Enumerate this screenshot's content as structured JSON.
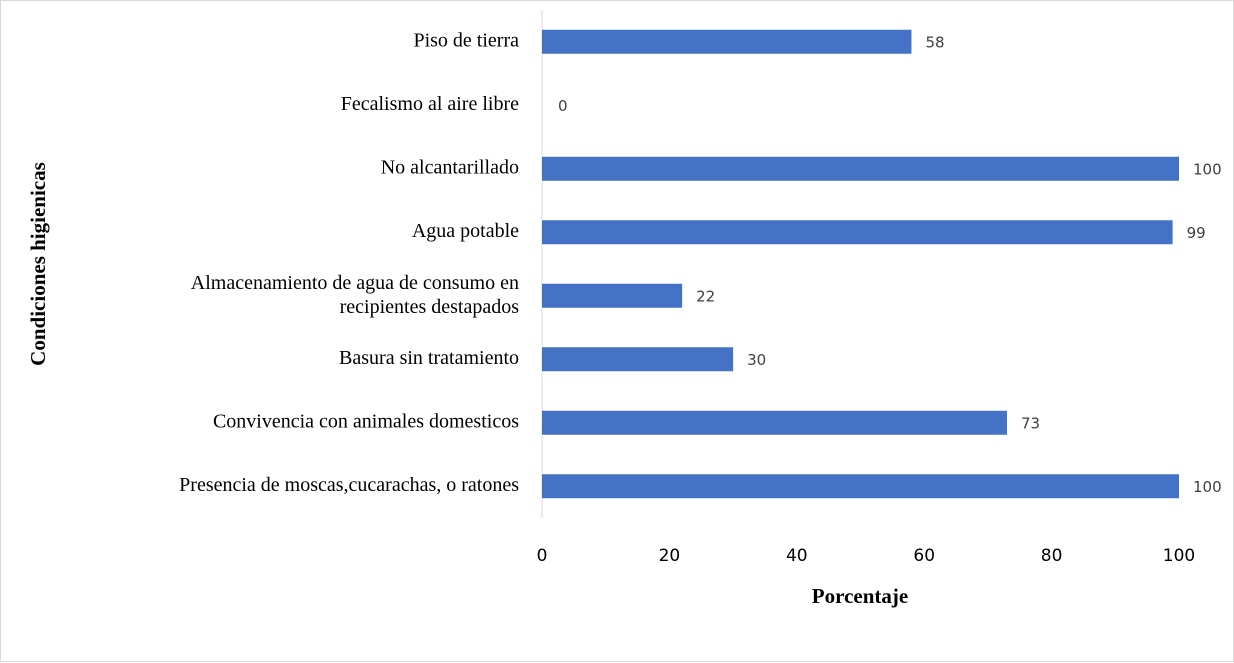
{
  "chart_data": {
    "type": "bar",
    "orientation": "horizontal",
    "categories": [
      "Piso de tierra",
      "Fecalismo al aire libre",
      "No alcantarillado",
      "Agua potable",
      "Almacenamiento de agua de consumo en\nrecipientes destapados",
      "Basura sin tratamiento",
      "Convivencia con animales domesticos",
      "Presencia de moscas,cucarachas, o ratones"
    ],
    "values": [
      58,
      0,
      100,
      99,
      22,
      30,
      73,
      100
    ],
    "color": "#4472c4",
    "xlim": [
      0,
      100
    ],
    "xticks": [
      0,
      20,
      40,
      60,
      80,
      100
    ],
    "x_label": "Porcentaje",
    "y_label": "Condiciones higienicas",
    "grid": false
  }
}
